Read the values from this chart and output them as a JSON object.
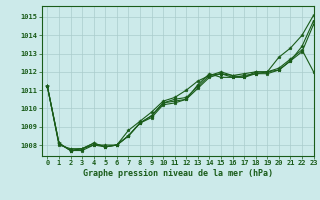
{
  "title": "Graphe pression niveau de la mer (hPa)",
  "bg_color": "#cceaea",
  "grid_color": "#aacccc",
  "line_color": "#1a5c1a",
  "marker": "*",
  "xlim": [
    -0.5,
    23
  ],
  "ylim": [
    1007.4,
    1015.6
  ],
  "yticks": [
    1008,
    1009,
    1010,
    1011,
    1012,
    1013,
    1014,
    1015
  ],
  "xticks": [
    0,
    1,
    2,
    3,
    4,
    5,
    6,
    7,
    8,
    9,
    10,
    11,
    12,
    13,
    14,
    15,
    16,
    17,
    18,
    19,
    20,
    21,
    22,
    23
  ],
  "series": [
    [
      1011.2,
      1008.0,
      1007.8,
      1007.8,
      1008.0,
      1007.9,
      1008.0,
      1008.8,
      1009.3,
      1009.8,
      1010.4,
      1010.6,
      1011.0,
      1011.5,
      1011.8,
      1011.9,
      1011.8,
      1011.7,
      1012.0,
      1012.0,
      1012.8,
      1013.3,
      1014.0,
      1015.1
    ],
    [
      1011.2,
      1008.1,
      1007.7,
      1007.7,
      1008.0,
      1008.0,
      1008.0,
      1008.5,
      1009.2,
      1009.6,
      1010.3,
      1010.4,
      1010.5,
      1011.3,
      1011.9,
      1011.7,
      1011.7,
      1011.7,
      1011.9,
      1011.9,
      1012.1,
      1012.6,
      1013.4,
      1014.8
    ],
    [
      1011.2,
      1008.1,
      1007.7,
      1007.8,
      1008.1,
      1007.9,
      1008.0,
      1008.5,
      1009.2,
      1009.5,
      1010.2,
      1010.3,
      1010.5,
      1011.1,
      1011.7,
      1011.9,
      1011.7,
      1011.8,
      1011.9,
      1012.0,
      1012.1,
      1012.6,
      1013.1,
      1014.6
    ],
    [
      1011.2,
      1008.1,
      1007.7,
      1007.8,
      1008.1,
      1007.9,
      1008.0,
      1008.5,
      1009.2,
      1009.6,
      1010.3,
      1010.5,
      1010.6,
      1011.2,
      1011.8,
      1012.0,
      1011.8,
      1011.9,
      1012.0,
      1012.0,
      1012.2,
      1012.7,
      1013.2,
      1012.0
    ]
  ]
}
